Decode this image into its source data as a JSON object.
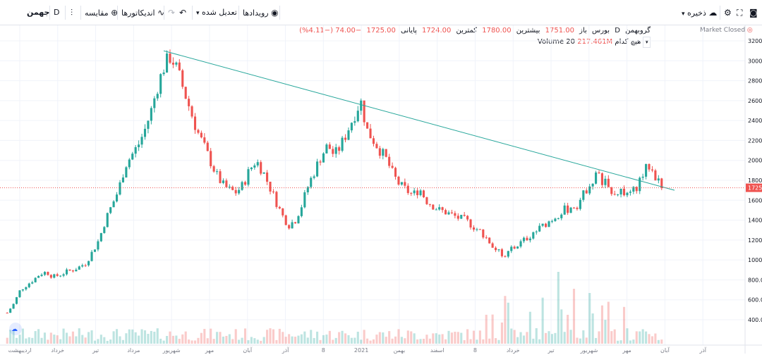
{
  "toolbar": {
    "symbol": "جهمن",
    "interval": "D",
    "compare_label": "مقایسه",
    "indicators_label": "اندیکاتورها",
    "adjusted_label": "تعدیل شده",
    "events_label": "رویدادها",
    "save_label": "ذخیره"
  },
  "legend": {
    "name": "گروبهمن",
    "interval": "D",
    "exchange": "بورس",
    "open_label": "باز",
    "open": "1751.00",
    "high_label": "بیشترین",
    "high": "1780.00",
    "low_label": "کمترین",
    "low": "1724.00",
    "close_label": "پایانی",
    "close": "1725.00",
    "change": "−74.00 (−4.11%)",
    "volume_label": "Volume 20",
    "volume_value": "217.461M",
    "volume_tag": "هیچ کدام"
  },
  "market_status": "Market Closed",
  "price_tag": "1725",
  "colors": {
    "up": "#26a69a",
    "down": "#ef5350",
    "trendline": "#26a69a",
    "price_line": "#ef5350"
  },
  "chart_data": {
    "type": "candlestick",
    "y_ticks": [
      400,
      600,
      800,
      1000,
      1200,
      1400,
      1600,
      1800,
      2000,
      2200,
      2400,
      2600,
      2800,
      3000,
      3200
    ],
    "y_tick_labels": [
      "400.00",
      "600.00",
      "800.00",
      "1000.00",
      "1200.00",
      "1400.00",
      "1600.00",
      "1800.00",
      "2000.00",
      "2200.00",
      "2400.00",
      "2600.00",
      "2800.00",
      "3000.00",
      "3200.00"
    ],
    "x_tick_labels": [
      "اردیبهشت",
      "خرداد",
      "تیر",
      "مرداد",
      "شهریور",
      "مهر",
      "آبان",
      "آذر",
      "8",
      "2021",
      "بهمن",
      "اسفند",
      "8",
      "خرداد",
      "تیر",
      "شهریور",
      "مهر",
      "آبان",
      "آذر"
    ],
    "price_series": [
      470,
      560,
      700,
      750,
      800,
      860,
      880,
      830,
      850,
      880,
      900,
      930,
      970,
      1080,
      1200,
      1400,
      1550,
      1700,
      1950,
      2050,
      2150,
      2300,
      2500,
      2750,
      2950,
      3050,
      2900,
      2700,
      2500,
      2300,
      2150,
      2000,
      1850,
      1750,
      1700,
      1680,
      1750,
      1900,
      2000,
      1900,
      1750,
      1600,
      1450,
      1350,
      1400,
      1550,
      1750,
      1900,
      2050,
      2150,
      2050,
      2150,
      2300,
      2450,
      2600,
      2300,
      2200,
      2100,
      2000,
      1850,
      1750,
      1700,
      1650,
      1720,
      1600,
      1550,
      1500,
      1480,
      1450,
      1420,
      1400,
      1350,
      1300,
      1250,
      1150,
      1080,
      1050,
      1100,
      1150,
      1200,
      1250,
      1300,
      1350,
      1400,
      1450,
      1500,
      1520,
      1550,
      1650,
      1780,
      1850,
      1800,
      1720,
      1680,
      1700,
      1620,
      1720,
      1850,
      1950,
      1850,
      1725
    ],
    "trendline": {
      "from_price": 3100,
      "to_price": 1700
    },
    "last_price": 1725
  }
}
